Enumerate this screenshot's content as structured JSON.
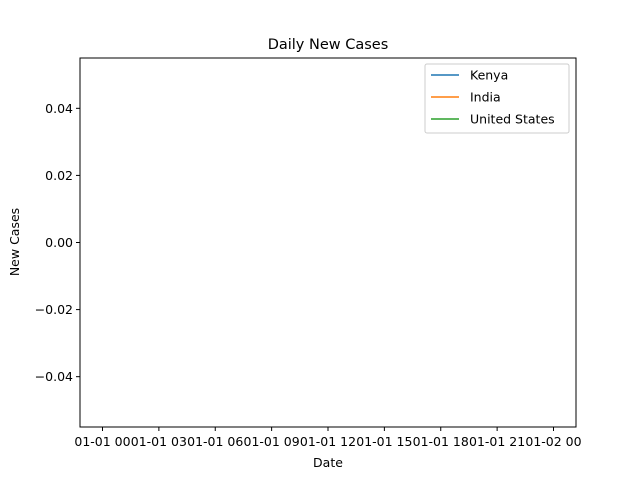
{
  "chart_data": {
    "type": "line",
    "title": "Daily New Cases",
    "xlabel": "Date",
    "ylabel": "New Cases",
    "x_ticks": [
      "01-01 00",
      "01-01 03",
      "01-01 06",
      "01-01 09",
      "01-01 12",
      "01-01 15",
      "01-01 18",
      "01-01 21",
      "01-02 00"
    ],
    "y_ticks": [
      0.04,
      0.02,
      0.0,
      -0.02,
      -0.04
    ],
    "y_tick_labels": [
      "0.04",
      "0.02",
      "0.00",
      "−0.02",
      "−0.04"
    ],
    "ylim": [
      -0.055,
      0.055
    ],
    "grid": false,
    "legend_position": "top-right",
    "series": [
      {
        "name": "Kenya",
        "color": "#1f77b4",
        "values": []
      },
      {
        "name": "India",
        "color": "#ff7f0e",
        "values": []
      },
      {
        "name": "United States",
        "color": "#2ca02c",
        "values": []
      }
    ]
  }
}
